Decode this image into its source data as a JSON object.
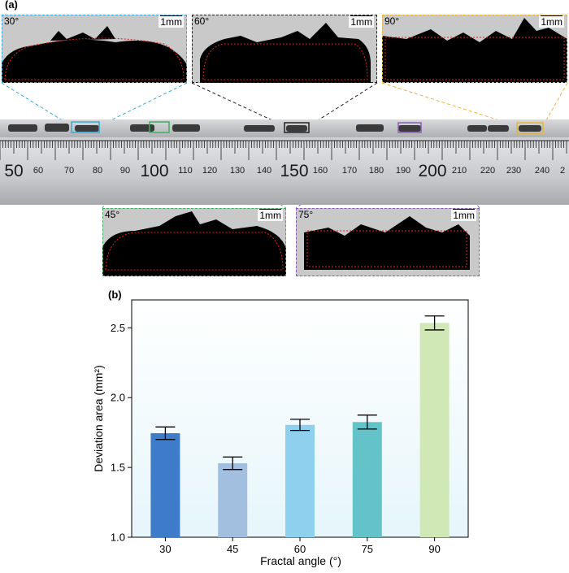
{
  "panel_a": {
    "label": "(a)",
    "insets": [
      {
        "angle": "30°",
        "scale": "1mm",
        "color": "#3aa9d8"
      },
      {
        "angle": "60°",
        "scale": "1mm",
        "color": "#222222"
      },
      {
        "angle": "90°",
        "scale": "1mm",
        "color": "#e8b43a"
      },
      {
        "angle": "45°",
        "scale": "1mm",
        "color": "#3fae62"
      },
      {
        "angle": "75°",
        "scale": "1mm",
        "color": "#8a5bb5"
      }
    ],
    "ruler": {
      "small_numbers": [
        "60",
        "70",
        "80",
        "90",
        "110",
        "120",
        "130",
        "140",
        "160",
        "170",
        "180",
        "190",
        "210",
        "220",
        "230",
        "240",
        "2"
      ],
      "big_numbers": [
        "50",
        "100",
        "150",
        "200"
      ]
    }
  },
  "panel_b": {
    "label": "(b)"
  },
  "chart_data": {
    "type": "bar",
    "categories": [
      "30",
      "45",
      "60",
      "75",
      "90"
    ],
    "values": [
      1.745,
      1.53,
      1.805,
      1.825,
      2.535
    ],
    "errors": [
      0.045,
      0.045,
      0.04,
      0.05,
      0.05
    ],
    "colors": [
      "#3e7bc8",
      "#a3bfdf",
      "#8ed0ee",
      "#63c3c9",
      "#cfe8b5"
    ],
    "xlabel": "Fractal angle (°)",
    "ylabel": "Deviation area (mm²)",
    "ylim": [
      1.0,
      2.7
    ],
    "yticks": [
      "1.0",
      "1.5",
      "2.0",
      "2.5"
    ],
    "grid": false
  }
}
